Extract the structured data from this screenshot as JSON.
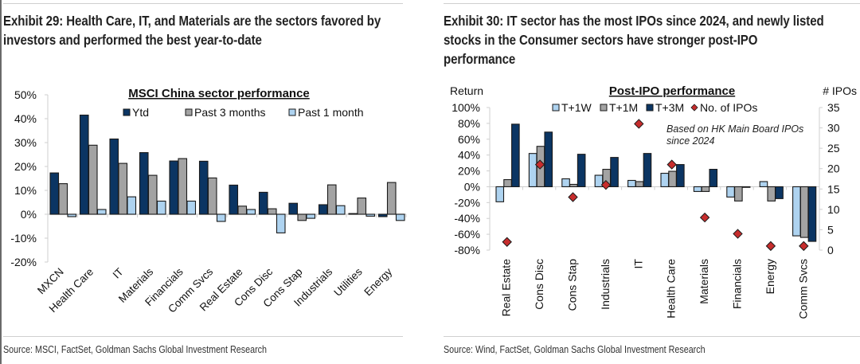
{
  "left": {
    "exhibit_title_line1": "Exhibit 29: Health Care, IT, and Materials are the sectors favored by",
    "exhibit_title_line2": "investors and performed the best year-to-date",
    "source": "Source: MSCI, FactSet, Goldman Sachs Global Investment Research"
  },
  "right": {
    "exhibit_title_line1": "Exhibit 30: IT sector has the most IPOs since 2024, and newly listed",
    "exhibit_title_line2": "stocks in the Consumer sectors have stronger post-IPO",
    "exhibit_title_line3": "performance",
    "source": "Source: Wind, FactSet, Goldman Sachs Global Investment Research"
  },
  "colors": {
    "navy": "#0b3563",
    "gray": "#a3a3a3",
    "lightblue": "#aed3f0",
    "diamond": "#c62d2d",
    "axis": "#cfcfcf"
  },
  "chart_data": [
    {
      "type": "bar",
      "title": "MSCI China sector performance",
      "xlabel": "",
      "ylabel": "",
      "ylim": [
        -20,
        50
      ],
      "yticks": [
        "50%",
        "40%",
        "30%",
        "20%",
        "10%",
        "0%",
        "-10%",
        "-20%"
      ],
      "ytick_values": [
        50,
        40,
        30,
        20,
        10,
        0,
        -10,
        -20
      ],
      "legend_position": "top",
      "grid": false,
      "categories": [
        "MXCN",
        "Health Care",
        "IT",
        "Materials",
        "Financials",
        "Comm Svcs",
        "Real Estate",
        "Cons Disc",
        "Cons Stap",
        "Industrials",
        "Utilities",
        "Energy"
      ],
      "series": [
        {
          "name": "Ytd",
          "color": "#0b3563",
          "values": [
            17.3,
            41.5,
            31.5,
            25.8,
            22.3,
            22.2,
            12.2,
            9.2,
            4.6,
            4.0,
            0.3,
            -1.0
          ]
        },
        {
          "name": "Past 3 months",
          "color": "#a3a3a3",
          "values": [
            12.8,
            28.9,
            21.3,
            16.3,
            23.3,
            15.2,
            3.4,
            2.3,
            -2.6,
            12.3,
            6.8,
            13.3
          ]
        },
        {
          "name": "Past 1 month",
          "color": "#aed3f0",
          "values": [
            -1.0,
            2.0,
            7.3,
            5.5,
            5.5,
            -3.0,
            2.0,
            -7.8,
            -1.7,
            3.6,
            -0.8,
            -2.6
          ]
        }
      ]
    },
    {
      "type": "bar",
      "title": "Post-IPO performance",
      "ylabel": "Return",
      "y2label": "# IPOs",
      "ylim": [
        -80,
        100
      ],
      "y2lim": [
        0,
        35
      ],
      "yticks": [
        "100%",
        "80%",
        "60%",
        "40%",
        "20%",
        "0%",
        "-20%",
        "-40%",
        "-60%",
        "-80%"
      ],
      "ytick_values": [
        100,
        80,
        60,
        40,
        20,
        0,
        -20,
        -40,
        -60,
        -80
      ],
      "y2ticks": [
        "35",
        "30",
        "25",
        "20",
        "15",
        "10",
        "5",
        "0"
      ],
      "y2tick_values": [
        35,
        30,
        25,
        20,
        15,
        10,
        5,
        0
      ],
      "legend_position": "top",
      "grid": false,
      "annotation_line1": "Based on HK Main Board IPOs",
      "annotation_line2": "since 2024",
      "categories": [
        "Real Estate",
        "Cons Disc",
        "Cons Stap",
        "Industrials",
        "IT",
        "Health Care",
        "Materials",
        "Financials",
        "Energy",
        "Comm Svcs"
      ],
      "series": [
        {
          "name": "T+1W",
          "color": "#aed3f0",
          "values": [
            -19,
            42,
            10,
            14.5,
            8,
            17,
            -6,
            -13,
            6.5,
            -62
          ]
        },
        {
          "name": "T+1M",
          "color": "#a3a3a3",
          "values": [
            9,
            51,
            3,
            22,
            6.5,
            19.5,
            -6,
            -18,
            -18,
            -64
          ]
        },
        {
          "name": "T+3M",
          "color": "#0b3563",
          "values": [
            79,
            69,
            41,
            37,
            42,
            28,
            22,
            0,
            -15,
            -69
          ]
        }
      ],
      "scatter_series": {
        "name": "No. of IPOs",
        "axis": "right",
        "color": "#c62d2d",
        "marker": "diamond",
        "values": [
          2,
          21,
          13,
          16,
          31,
          21,
          8,
          4,
          1,
          1
        ]
      }
    }
  ]
}
